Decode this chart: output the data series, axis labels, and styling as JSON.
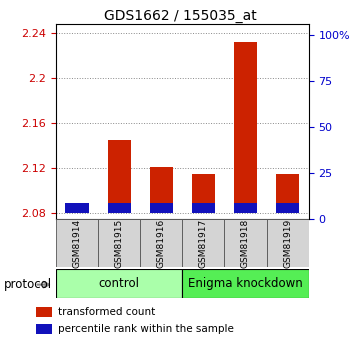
{
  "title": "GDS1662 / 155035_at",
  "samples": [
    "GSM81914",
    "GSM81915",
    "GSM81916",
    "GSM81917",
    "GSM81918",
    "GSM81919"
  ],
  "red_values": [
    2.086,
    2.145,
    2.121,
    2.115,
    2.232,
    2.115
  ],
  "baseline": 2.08,
  "ylim_left": [
    2.075,
    2.248
  ],
  "yticks_left": [
    2.08,
    2.12,
    2.16,
    2.2,
    2.24
  ],
  "ytick_labels_left": [
    "2.08",
    "2.12",
    "2.16",
    "2.2",
    "2.24"
  ],
  "yticks_right": [
    0,
    25,
    50,
    75,
    100
  ],
  "ytick_labels_right": [
    "0",
    "25",
    "50",
    "75",
    "100%"
  ],
  "ylim_right": [
    0,
    106
  ],
  "bar_width": 0.55,
  "red_color": "#cc2200",
  "blue_color": "#1111bb",
  "control_color": "#aaffaa",
  "knockdown_color": "#55ee55",
  "legend_red": "transformed count",
  "legend_blue": "percentile rank within the sample",
  "left_tick_color": "#cc0000",
  "right_tick_color": "#0000cc",
  "blue_bar_height": 0.009,
  "grid_color": "#888888",
  "spine_color": "#888888"
}
